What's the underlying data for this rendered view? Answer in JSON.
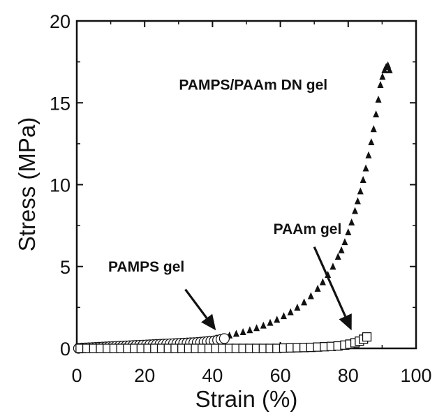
{
  "chart_data": {
    "type": "scatter",
    "title": "",
    "xlabel": "Strain (%)",
    "ylabel": "Stress (MPa)",
    "xlim": [
      0,
      100
    ],
    "ylim": [
      0,
      20
    ],
    "xticks": [
      0,
      20,
      40,
      60,
      80,
      100
    ],
    "yticks": [
      0,
      5,
      10,
      15,
      20
    ],
    "xtick_labels": [
      "0",
      "20",
      "40",
      "60",
      "80",
      "100"
    ],
    "ytick_labels": [
      "0",
      "5",
      "10",
      "15",
      "20"
    ],
    "grid": false,
    "legend": "none",
    "series": [
      {
        "marker": "filled-triangle",
        "color": "#111111",
        "x": [
          1,
          3,
          5,
          7,
          9,
          11,
          13,
          15,
          17,
          19,
          21,
          23,
          25,
          27,
          29,
          31,
          33,
          35,
          37,
          39,
          41,
          43,
          45,
          47,
          49,
          51,
          53,
          55,
          57,
          59,
          61,
          63,
          65,
          67,
          69,
          71,
          72.5,
          74,
          75.5,
          77,
          78,
          79,
          80,
          81,
          82,
          82.8,
          83.6,
          84.4,
          85.2,
          86,
          86.8,
          87.5,
          88.2,
          88.9,
          89.5,
          90.1,
          90.7,
          91.2,
          91.7,
          92.2
        ],
        "y": [
          0.0,
          0.0,
          0.0,
          0.02,
          0.04,
          0.06,
          0.08,
          0.1,
          0.12,
          0.14,
          0.17,
          0.2,
          0.23,
          0.27,
          0.31,
          0.35,
          0.4,
          0.45,
          0.5,
          0.56,
          0.63,
          0.71,
          0.8,
          0.9,
          1.0,
          1.12,
          1.25,
          1.4,
          1.57,
          1.76,
          1.98,
          2.22,
          2.5,
          2.82,
          3.2,
          3.65,
          4.05,
          4.5,
          5.0,
          5.6,
          6.0,
          6.5,
          7.1,
          7.7,
          8.4,
          9.0,
          9.6,
          10.3,
          11.0,
          11.8,
          12.6,
          13.4,
          14.3,
          15.2,
          16.1,
          16.6,
          17.0,
          17.2,
          17.3,
          17.0
        ]
      },
      {
        "marker": "open-circle",
        "color": "#111111",
        "x": [
          0.5,
          1.5,
          2.5,
          3.5,
          4.5,
          5.5,
          6.5,
          7.5,
          8.5,
          9.5,
          10.5,
          11.5,
          12.5,
          13.5,
          14.5,
          15.5,
          16.5,
          17.5,
          18.5,
          19.5,
          20.5,
          21.5,
          22.5,
          23.5,
          24.5,
          25.5,
          26.5,
          27.5,
          28.5,
          29.5,
          30.5,
          31.5,
          32.5,
          33.5,
          34.5,
          35.5,
          36.5,
          37.5,
          38.5,
          39.5,
          40.5,
          41.5,
          42.5,
          43.5
        ],
        "y": [
          0.0,
          0.02,
          0.03,
          0.04,
          0.05,
          0.06,
          0.07,
          0.08,
          0.09,
          0.1,
          0.11,
          0.12,
          0.13,
          0.14,
          0.15,
          0.16,
          0.17,
          0.18,
          0.19,
          0.2,
          0.21,
          0.22,
          0.23,
          0.24,
          0.25,
          0.26,
          0.27,
          0.28,
          0.29,
          0.3,
          0.31,
          0.32,
          0.33,
          0.34,
          0.35,
          0.36,
          0.38,
          0.4,
          0.42,
          0.44,
          0.46,
          0.5,
          0.55,
          0.6
        ]
      },
      {
        "marker": "open-square",
        "color": "#111111",
        "x": [
          1,
          3,
          5,
          7,
          9,
          11,
          13,
          15,
          17,
          19,
          21,
          23,
          25,
          27,
          29,
          31,
          33,
          35,
          37,
          39,
          41,
          43,
          45,
          47,
          49,
          51,
          53,
          55,
          57,
          59,
          61,
          63,
          65,
          67,
          69,
          71,
          73,
          75,
          77,
          79,
          80.5,
          82,
          83.3,
          84.5,
          85.5
        ],
        "y": [
          0.0,
          0.0,
          0.0,
          0.0,
          0.0,
          0.0,
          0.0,
          0.0,
          0.0,
          0.0,
          0.0,
          0.0,
          0.0,
          0.0,
          0.0,
          0.0,
          0.0,
          0.0,
          0.0,
          0.0,
          0.0,
          0.0,
          0.0,
          0.0,
          0.0,
          0.0,
          0.0,
          0.0,
          0.0,
          0.0,
          0.02,
          0.03,
          0.04,
          0.05,
          0.06,
          0.08,
          0.1,
          0.12,
          0.15,
          0.2,
          0.26,
          0.34,
          0.44,
          0.56,
          0.7
        ]
      }
    ],
    "annotations": [
      {
        "text": "PAMPS/PAAm DN gel",
        "x": 52,
        "y": 15.8
      },
      {
        "text": "PAMPS gel",
        "x": 20.5,
        "y": 4.7
      },
      {
        "text": "PAAm gel",
        "x": 68,
        "y": 7.0
      }
    ],
    "arrows": [
      {
        "from": [
          32,
          3.6
        ],
        "to": [
          41,
          1.1
        ]
      },
      {
        "from": [
          70,
          6.2
        ],
        "to": [
          81,
          1.1
        ]
      }
    ]
  }
}
